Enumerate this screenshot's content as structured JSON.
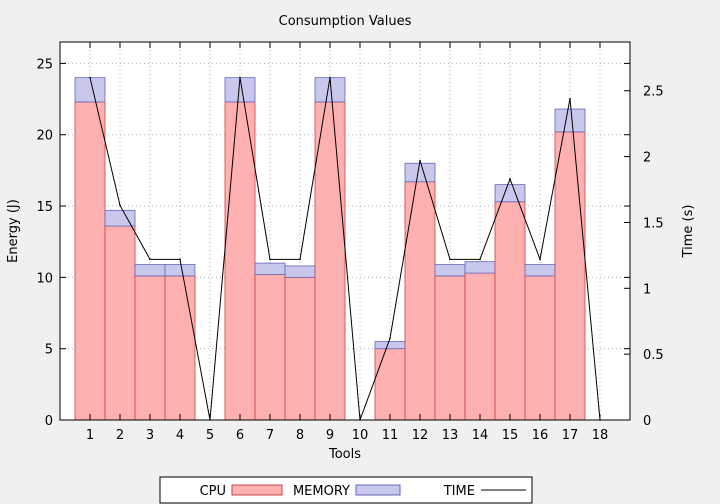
{
  "chart_data": {
    "type": "bar",
    "title": "Consumption Values",
    "xlabel": "Tools",
    "ylabel": "Energy (J)",
    "y2label": "Time (s)",
    "categories": [
      "1",
      "2",
      "3",
      "4",
      "5",
      "6",
      "7",
      "8",
      "9",
      "10",
      "11",
      "12",
      "13",
      "14",
      "15",
      "16",
      "17",
      "18"
    ],
    "stacked": true,
    "ylim": [
      0,
      26.5
    ],
    "y2lim": [
      0,
      2.87
    ],
    "yticks": [
      0,
      5,
      10,
      15,
      20,
      25
    ],
    "y2ticks": [
      0,
      0.5,
      1,
      1.5,
      2,
      2.5
    ],
    "y2tick_labels": [
      "0",
      "0.5",
      "1",
      "1.5",
      "2",
      "2.5"
    ],
    "grid": true,
    "legend_position": "bottom",
    "series": [
      {
        "name": "CPU",
        "kind": "bar",
        "axis": "left",
        "values": [
          22.3,
          13.6,
          10.1,
          10.1,
          0,
          22.3,
          10.2,
          10.0,
          22.3,
          0,
          5.0,
          16.7,
          10.1,
          10.3,
          15.3,
          10.1,
          20.2,
          0
        ]
      },
      {
        "name": "MEMORY",
        "kind": "bar",
        "axis": "left",
        "values": [
          1.7,
          1.1,
          0.8,
          0.8,
          0,
          1.7,
          0.8,
          0.8,
          1.7,
          0,
          0.5,
          1.3,
          0.8,
          0.8,
          1.2,
          0.8,
          1.6,
          0
        ]
      },
      {
        "name": "TIME",
        "kind": "line",
        "axis": "right",
        "values": [
          2.6,
          1.63,
          1.22,
          1.22,
          0,
          2.6,
          1.22,
          1.22,
          2.6,
          0,
          0.62,
          1.97,
          1.22,
          1.22,
          1.83,
          1.22,
          2.44,
          0
        ]
      }
    ],
    "colors": {
      "cpu_fill": "#ffb0b0",
      "cpu_stroke": "#cc4444",
      "memory_fill": "#c8c8ec",
      "memory_stroke": "#6666bb",
      "time_line": "#000000",
      "plot_background": "#ffffff",
      "page_background": "#f0f0f0",
      "grid": "#b0b0b0"
    }
  }
}
